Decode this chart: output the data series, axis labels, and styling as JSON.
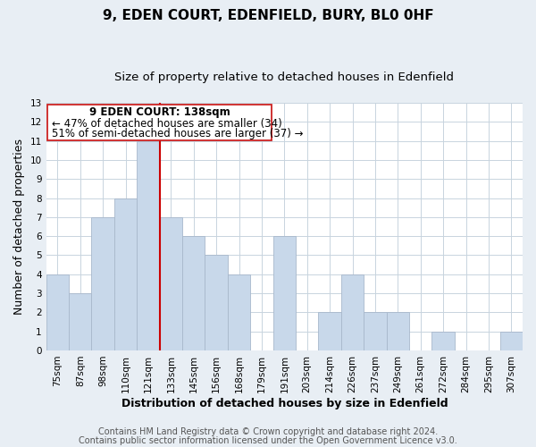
{
  "title": "9, EDEN COURT, EDENFIELD, BURY, BL0 0HF",
  "subtitle": "Size of property relative to detached houses in Edenfield",
  "xlabel": "Distribution of detached houses by size in Edenfield",
  "ylabel": "Number of detached properties",
  "footer_line1": "Contains HM Land Registry data © Crown copyright and database right 2024.",
  "footer_line2": "Contains public sector information licensed under the Open Government Licence v3.0.",
  "bin_labels": [
    "75sqm",
    "87sqm",
    "98sqm",
    "110sqm",
    "121sqm",
    "133sqm",
    "145sqm",
    "156sqm",
    "168sqm",
    "179sqm",
    "191sqm",
    "203sqm",
    "214sqm",
    "226sqm",
    "237sqm",
    "249sqm",
    "261sqm",
    "272sqm",
    "284sqm",
    "295sqm",
    "307sqm"
  ],
  "bar_values": [
    4,
    3,
    7,
    8,
    11,
    7,
    6,
    5,
    4,
    0,
    6,
    0,
    2,
    4,
    2,
    2,
    0,
    1,
    0,
    0,
    1
  ],
  "bar_color": "#c8d8ea",
  "bar_edge_color": "#a8b8cc",
  "highlight_line_color": "#cc0000",
  "highlight_line_bin": 5,
  "ylim_max": 13,
  "annotation_line1": "9 EDEN COURT: 138sqm",
  "annotation_line2": "← 47% of detached houses are smaller (34)",
  "annotation_line3": "51% of semi-detached houses are larger (37) →",
  "background_color": "#e8eef4",
  "plot_bg_color": "#ffffff",
  "grid_color": "#c8d4de",
  "title_fontsize": 11,
  "subtitle_fontsize": 9.5,
  "axis_label_fontsize": 9,
  "tick_fontsize": 7.5,
  "annotation_fontsize": 8.5,
  "footer_fontsize": 7
}
